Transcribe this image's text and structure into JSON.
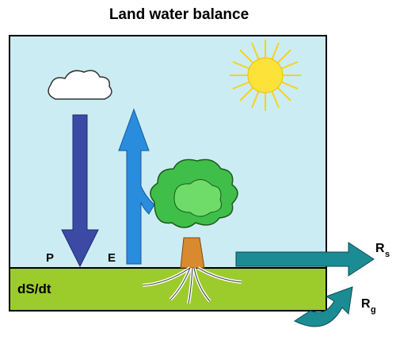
{
  "title": "Land water balance",
  "labels": {
    "precipitation": "P",
    "evaporation": "E",
    "storage": "dS/dt",
    "surface_runoff": {
      "main": "R",
      "sub": "s"
    },
    "ground_runoff": {
      "main": "R",
      "sub": "g"
    }
  }
}
